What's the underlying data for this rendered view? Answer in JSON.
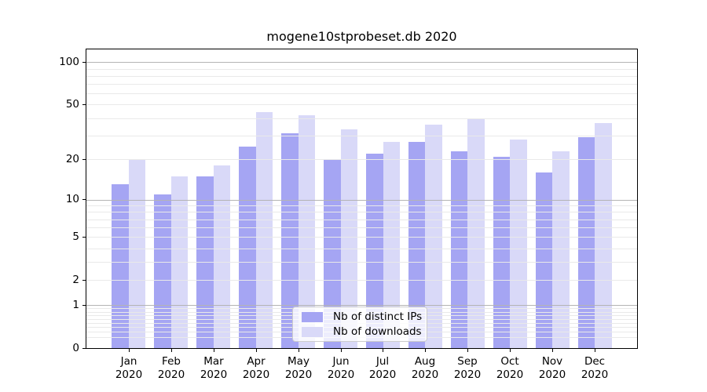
{
  "chart_data": {
    "type": "bar",
    "title": "mogene10stprobeset.db 2020",
    "categories": [
      "Jan",
      "Feb",
      "Mar",
      "Apr",
      "May",
      "Jun",
      "Jul",
      "Aug",
      "Sep",
      "Oct",
      "Nov",
      "Dec"
    ],
    "year_label": "2020",
    "series": [
      {
        "name": "Nb of distinct IPs",
        "color": "#a5a5f3",
        "values": [
          13,
          11,
          15,
          25,
          31,
          20,
          22,
          27,
          23,
          21,
          16,
          29
        ]
      },
      {
        "name": "Nb of downloads",
        "color": "#d9d9f8",
        "values": [
          20,
          15,
          18,
          44,
          42,
          33,
          27,
          36,
          39,
          28,
          23,
          37
        ]
      }
    ],
    "y_axis": {
      "scale": "log(1+y)",
      "tick_labels": [
        "100",
        "50",
        "20",
        "10",
        "5",
        "2",
        "1",
        "0"
      ],
      "tick_values": [
        100,
        50,
        20,
        10,
        5,
        2,
        1,
        0
      ],
      "decade_gridlines": [
        1,
        10,
        100
      ],
      "minor_gridlines": [
        0.2,
        0.3,
        0.4,
        0.5,
        0.6,
        0.7,
        0.8,
        0.9,
        2,
        3,
        4,
        5,
        6,
        7,
        8,
        9,
        20,
        30,
        40,
        50,
        60,
        70,
        80,
        90
      ],
      "ylim": [
        0,
        123
      ]
    },
    "x_axis": {
      "xlim_slots": 13
    },
    "grid": "horizontal",
    "legend_position": "lower center"
  },
  "colors": {
    "distinct_ips": "#a5a5f3",
    "downloads": "#d9d9f8",
    "decade_grid": "#b4b4b4",
    "minor_grid": "#e9e9e9",
    "spine": "#000000",
    "legend_border": "#cccccc"
  }
}
